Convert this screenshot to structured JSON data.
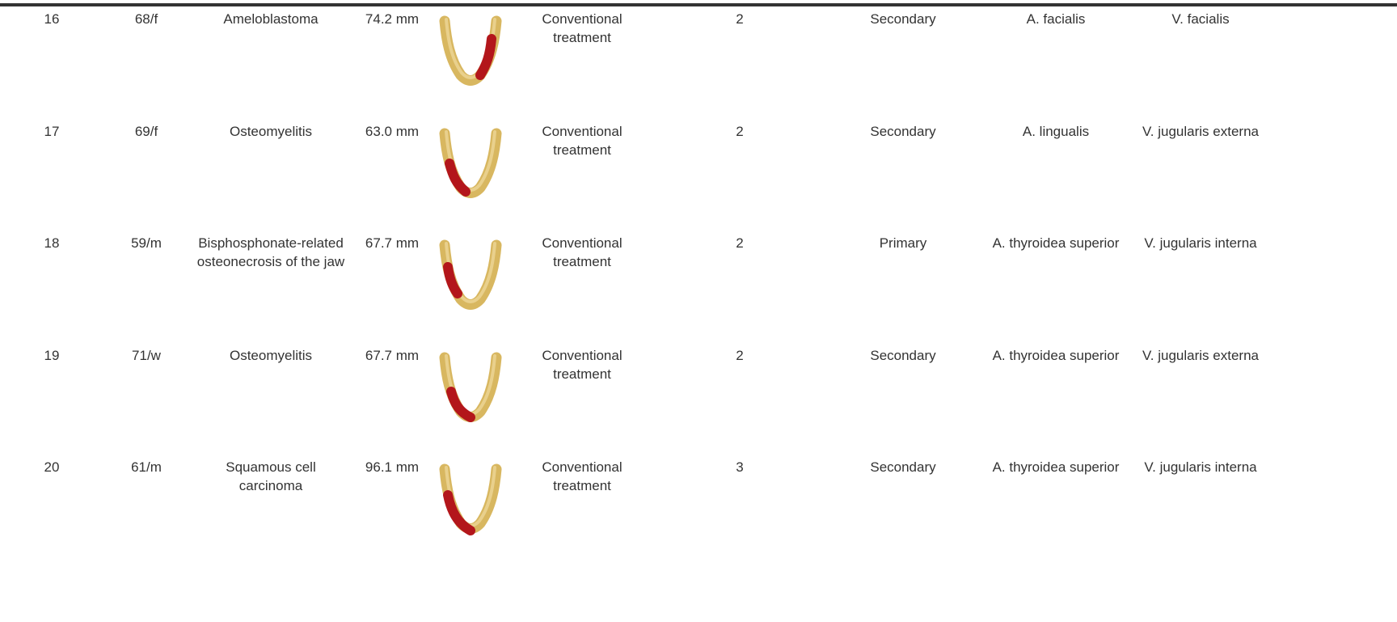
{
  "table": {
    "rows": [
      [
        "16",
        "68/f",
        "Ameloblastoma",
        "74.2 mm",
        "Conventional treatment",
        "2",
        "Secondary",
        "A. facialis",
        "V. facialis"
      ],
      [
        "17",
        "69/f",
        "Osteomyelitis",
        "63.0 mm",
        "Conventional treatment",
        "2",
        "Secondary",
        "A. lingualis",
        "V. jugularis externa"
      ],
      [
        "18",
        "59/m",
        "Bisphosphonate-related osteonecrosis of the jaw",
        "67.7 mm",
        "Conventional treatment",
        "2",
        "Primary",
        "A. thyroidea superior",
        "V. jugularis interna"
      ],
      [
        "19",
        "71/w",
        "Osteomyelitis",
        "67.7 mm",
        "Conventional treatment",
        "2",
        "Secondary",
        "A. thyroidea superior",
        "V. jugularis externa"
      ],
      [
        "20",
        "61/m",
        "Squamous cell carcinoma",
        "96.1 mm",
        "Conventional treatment",
        "3",
        "Secondary",
        "A. thyroidea superior",
        "V. jugularis interna"
      ]
    ]
  }
}
